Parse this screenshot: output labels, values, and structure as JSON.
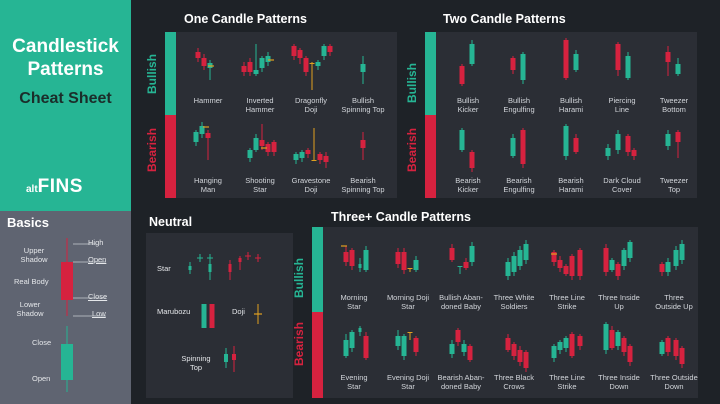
{
  "title": {
    "line1": "Candlestick",
    "line2": "Patterns",
    "line3": "Cheat Sheet"
  },
  "logo": {
    "prefix": "alt",
    "name": "FINS"
  },
  "basics": {
    "title": "Basics",
    "upper_shadow": "Upper\nShadow",
    "real_body": "Real Body",
    "lower_shadow": "Lower\nShadow",
    "high": "High",
    "open": "Open",
    "close": "Close",
    "low": "Low",
    "close2": "Close",
    "open2": "Open"
  },
  "sections": {
    "one": "One Candle Patterns",
    "two": "Two Candle Patterns",
    "neutral": "Neutral",
    "three": "Three+ Candle Patterns"
  },
  "side_labels": {
    "bullish": "Bullish",
    "bearish": "Bearish"
  },
  "one_bull": [
    "Hammer",
    "Inverted\nHammer",
    "Dragonfly\nDoji",
    "Bullish\nSpinning Top"
  ],
  "one_bear": [
    "Hanging\nMan",
    "Shooting\nStar",
    "Gravestone\nDoji",
    "Bearish\nSpinning Top"
  ],
  "two_bull": [
    "Bullish\nKicker",
    "Bullish\nEngulfing",
    "Bullish\nHarami",
    "Piercing\nLine",
    "Tweezer\nBottom"
  ],
  "two_bear": [
    "Bearish\nKicker",
    "Bearish\nEngulfing",
    "Bearish\nHarami",
    "Dark Cloud\nCover",
    "Tweezer\nTop"
  ],
  "neutral_labels": {
    "star": "Star",
    "marubozu": "Marubozu",
    "doji": "Doji",
    "spinning_top": "Spinning\nTop"
  },
  "three_bull": [
    "Morning\nStar",
    "Morning Doji\nStar",
    "Bullish Aban-\ndoned Baby",
    "Three White\nSoldiers",
    "Three Line\nStrike",
    "Three Inside\nUp",
    "Three\nOutside Up"
  ],
  "three_bear": [
    "Evening\nStar",
    "Evening Doji\nStar",
    "Bearish Aban-\ndoned Baby",
    "Three Black\nCrows",
    "Three Line\nStrike",
    "Three Inside\nDown",
    "Three Outside\nDown"
  ],
  "colors": {
    "green": "#26b594",
    "red": "#d6223f",
    "panel": "#2b2e35",
    "bg": "#1e2227",
    "basics": "#5f6471"
  }
}
